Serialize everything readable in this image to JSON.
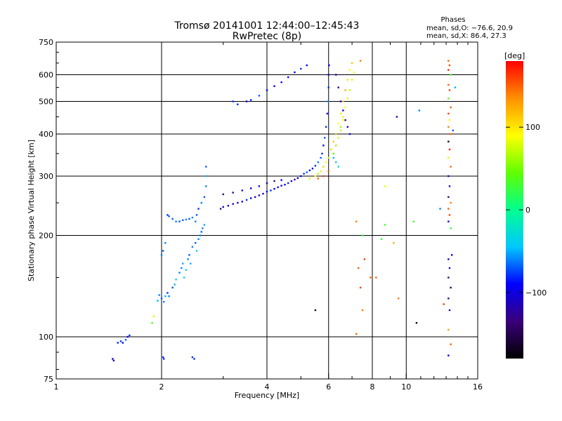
{
  "chart_data": {
    "type": "scatter",
    "title": "Tromsø 20141001 12:44:00–12:45:43",
    "subtitle": "RwPretec (8p)",
    "xlabel": "Frequency [MHz]",
    "ylabel": "Stationary phase Virtual Height [km]",
    "x_scale": "log",
    "y_scale": "log",
    "xlim": [
      1,
      16
    ],
    "ylim": [
      75,
      750
    ],
    "x_ticks": [
      1,
      2,
      4,
      6,
      8,
      10,
      16
    ],
    "x_tick_labels": [
      "1",
      "2",
      "4",
      "6",
      "8",
      "10",
      "16"
    ],
    "y_ticks": [
      75,
      100,
      200,
      300,
      400,
      500,
      600,
      750
    ],
    "y_tick_labels": [
      "75",
      "100",
      "200",
      "300",
      "400",
      "500",
      "600",
      "750"
    ],
    "grid": true,
    "stats": {
      "heading": "Phases",
      "line_o": "mean, sd,O: −76.6, 20.9",
      "line_x": "mean, sd,X:  86.4, 27.3"
    },
    "colorbar": {
      "label": "[deg]",
      "range": [
        -180,
        180
      ],
      "ticks": [
        100,
        0,
        -100
      ],
      "tick_labels": [
        "100",
        "0",
        "−100"
      ],
      "stops": [
        "#000000",
        "#3a007a",
        "#0000ff",
        "#00c8ff",
        "#00ff90",
        "#60ff00",
        "#ffff00",
        "#ff9000",
        "#ff0000"
      ]
    },
    "series": [
      {
        "points": [
          [
            1.45,
            86
          ],
          [
            1.46,
            85
          ],
          [
            1.5,
            96
          ],
          [
            1.53,
            97
          ],
          [
            1.55,
            96
          ],
          [
            1.58,
            98
          ],
          [
            1.6,
            100
          ],
          [
            1.62,
            101
          ],
          [
            1.88,
            110
          ],
          [
            1.9,
            115
          ],
          [
            1.95,
            128
          ],
          [
            1.97,
            133
          ],
          [
            2.0,
            130
          ],
          [
            2.03,
            127
          ],
          [
            2.05,
            132
          ],
          [
            2.08,
            135
          ],
          [
            2.1,
            132
          ],
          [
            2.15,
            140
          ],
          [
            2.18,
            143
          ],
          [
            2.2,
            148
          ],
          [
            2.25,
            155
          ],
          [
            2.28,
            160
          ],
          [
            2.3,
            165
          ],
          [
            2.32,
            150
          ],
          [
            2.35,
            158
          ],
          [
            2.38,
            170
          ],
          [
            2.4,
            175
          ],
          [
            2.42,
            165
          ],
          [
            2.45,
            185
          ],
          [
            2.5,
            190
          ],
          [
            2.52,
            180
          ],
          [
            2.55,
            195
          ],
          [
            2.58,
            200
          ],
          [
            2.6,
            205
          ],
          [
            2.62,
            210
          ],
          [
            2.65,
            215
          ],
          [
            2.5,
            220
          ],
          [
            2.52,
            230
          ],
          [
            2.55,
            240
          ],
          [
            2.6,
            250
          ],
          [
            2.65,
            260
          ],
          [
            2.68,
            280
          ],
          [
            2.7,
            300
          ],
          [
            2.68,
            320
          ],
          [
            2.0,
            175
          ],
          [
            2.02,
            180
          ],
          [
            2.05,
            190
          ],
          [
            2.08,
            230
          ],
          [
            2.1,
            228
          ],
          [
            2.15,
            224
          ],
          [
            2.2,
            220
          ],
          [
            2.25,
            220
          ],
          [
            2.3,
            222
          ],
          [
            2.35,
            223
          ],
          [
            2.4,
            224
          ],
          [
            2.45,
            226
          ],
          [
            2.02,
            87
          ],
          [
            2.03,
            86
          ],
          [
            2.45,
            87
          ],
          [
            2.48,
            86
          ],
          [
            2.95,
            240
          ],
          [
            3.0,
            243
          ],
          [
            3.1,
            245
          ],
          [
            3.2,
            248
          ],
          [
            3.3,
            250
          ],
          [
            3.4,
            252
          ],
          [
            3.5,
            255
          ],
          [
            3.6,
            258
          ],
          [
            3.7,
            260
          ],
          [
            3.8,
            263
          ],
          [
            3.9,
            266
          ],
          [
            4.0,
            270
          ],
          [
            4.1,
            272
          ],
          [
            4.2,
            275
          ],
          [
            4.3,
            278
          ],
          [
            4.4,
            281
          ],
          [
            4.5,
            283
          ],
          [
            4.6,
            286
          ],
          [
            4.7,
            290
          ],
          [
            4.8,
            293
          ],
          [
            4.9,
            296
          ],
          [
            5.0,
            300
          ],
          [
            5.1,
            305
          ],
          [
            5.2,
            308
          ],
          [
            5.3,
            312
          ],
          [
            5.4,
            316
          ],
          [
            5.5,
            322
          ],
          [
            5.6,
            330
          ],
          [
            5.7,
            340
          ],
          [
            5.75,
            350
          ],
          [
            5.8,
            370
          ],
          [
            5.85,
            390
          ],
          [
            5.9,
            420
          ],
          [
            5.95,
            460
          ],
          [
            5.98,
            500
          ],
          [
            6.0,
            550
          ],
          [
            6.0,
            600
          ],
          [
            6.02,
            640
          ],
          [
            3.0,
            265
          ],
          [
            3.2,
            268
          ],
          [
            3.4,
            272
          ],
          [
            3.6,
            276
          ],
          [
            3.8,
            280
          ],
          [
            4.0,
            286
          ],
          [
            4.2,
            290
          ],
          [
            4.4,
            292
          ],
          [
            3.3,
            490
          ],
          [
            3.5,
            500
          ],
          [
            3.6,
            505
          ],
          [
            3.8,
            520
          ],
          [
            4.0,
            540
          ],
          [
            4.2,
            555
          ],
          [
            4.4,
            570
          ],
          [
            4.6,
            590
          ],
          [
            4.8,
            610
          ],
          [
            5.0,
            625
          ],
          [
            5.2,
            640
          ],
          [
            3.2,
            500
          ],
          [
            6.3,
            600
          ],
          [
            6.4,
            550
          ],
          [
            6.5,
            500
          ],
          [
            6.6,
            470
          ],
          [
            6.7,
            440
          ],
          [
            6.8,
            420
          ],
          [
            6.9,
            400
          ],
          [
            6.1,
            360
          ],
          [
            6.2,
            340
          ],
          [
            6.3,
            330
          ],
          [
            6.4,
            320
          ],
          [
            10.9,
            470
          ],
          [
            9.4,
            450
          ],
          [
            5.5,
            120
          ],
          [
            8.7,
            280
          ],
          [
            10.7,
            110
          ],
          [
            9.2,
            190
          ]
        ],
        "phase": [
          -110,
          -110,
          -80,
          -80,
          -90,
          -70,
          -90,
          -80,
          40,
          100,
          -50,
          -60,
          -70,
          -60,
          -50,
          -80,
          -60,
          -70,
          -50,
          -40,
          -60,
          -60,
          -50,
          -30,
          -40,
          -60,
          -70,
          -50,
          -60,
          -70,
          -40,
          -60,
          -60,
          -70,
          -60,
          -50,
          -60,
          -70,
          -80,
          -60,
          -70,
          -60,
          -50,
          -70,
          -60,
          -70,
          -60,
          -80,
          -70,
          -70,
          -60,
          -70,
          -70,
          -60,
          -70,
          -60,
          -80,
          -80,
          -80,
          -80,
          -120,
          -110,
          -100,
          -100,
          -110,
          -90,
          -80,
          -100,
          -120,
          -110,
          -100,
          -90,
          -80,
          -90,
          -100,
          -110,
          -90,
          -80,
          -110,
          -120,
          -100,
          -90,
          -80,
          -70,
          -90,
          -100,
          -80,
          -60,
          -70,
          -80,
          -90,
          -70,
          -80,
          -90,
          -60,
          -80,
          -100,
          -90,
          -130,
          -120,
          -110,
          -100,
          -100,
          -110,
          -120,
          -100,
          -80,
          -90,
          -80,
          -70,
          -90,
          -100,
          -110,
          -100,
          -90,
          -80,
          -90,
          -80,
          -120,
          -130,
          -110,
          -100,
          -140,
          -120,
          -110,
          -60,
          -50,
          -40,
          -30,
          -60,
          -110,
          -170,
          80,
          -170,
          120
        ]
      },
      {
        "points": [
          [
            5.3,
            295
          ],
          [
            5.5,
            300
          ],
          [
            5.6,
            305
          ],
          [
            5.7,
            310
          ],
          [
            5.8,
            320
          ],
          [
            5.9,
            330
          ],
          [
            6.0,
            340
          ],
          [
            6.1,
            360
          ],
          [
            6.2,
            380
          ],
          [
            6.3,
            400
          ],
          [
            6.4,
            430
          ],
          [
            6.5,
            460
          ],
          [
            6.6,
            500
          ],
          [
            6.7,
            540
          ],
          [
            6.8,
            580
          ],
          [
            6.9,
            620
          ],
          [
            7.0,
            650
          ],
          [
            6.5,
            420
          ],
          [
            6.6,
            450
          ],
          [
            6.7,
            480
          ],
          [
            6.8,
            510
          ],
          [
            6.9,
            540
          ],
          [
            7.0,
            580
          ],
          [
            7.1,
            610
          ],
          [
            6.2,
            350
          ],
          [
            6.3,
            370
          ],
          [
            6.4,
            390
          ],
          [
            6.5,
            410
          ],
          [
            6.6,
            440
          ],
          [
            6.0,
            310
          ],
          [
            5.8,
            300
          ],
          [
            5.6,
            295
          ],
          [
            7.4,
            660
          ],
          [
            7.2,
            220
          ],
          [
            7.3,
            160
          ],
          [
            7.4,
            140
          ],
          [
            7.5,
            120
          ],
          [
            7.2,
            102
          ],
          [
            7.5,
            200
          ],
          [
            8.2,
            150
          ],
          [
            8.7,
            215
          ],
          [
            8.5,
            195
          ],
          [
            9.5,
            130
          ],
          [
            10.5,
            220
          ],
          [
            7.9,
            150
          ],
          [
            7.6,
            170
          ],
          [
            13.2,
            660
          ],
          [
            13.3,
            640
          ],
          [
            13.2,
            620
          ],
          [
            13.4,
            600
          ],
          [
            13.2,
            560
          ],
          [
            13.3,
            540
          ],
          [
            13.2,
            510
          ],
          [
            13.4,
            480
          ],
          [
            13.2,
            460
          ],
          [
            13.3,
            440
          ],
          [
            13.2,
            420
          ],
          [
            13.4,
            400
          ],
          [
            13.2,
            380
          ],
          [
            13.3,
            360
          ],
          [
            13.2,
            340
          ],
          [
            13.4,
            320
          ],
          [
            13.2,
            300
          ],
          [
            13.3,
            280
          ],
          [
            13.2,
            260
          ],
          [
            13.4,
            250
          ],
          [
            13.2,
            240
          ],
          [
            13.3,
            230
          ],
          [
            13.2,
            220
          ],
          [
            13.4,
            210
          ],
          [
            13.2,
            170
          ],
          [
            13.3,
            160
          ],
          [
            13.2,
            150
          ],
          [
            13.4,
            140
          ],
          [
            13.2,
            130
          ],
          [
            13.3,
            120
          ],
          [
            13.2,
            105
          ],
          [
            13.4,
            95
          ],
          [
            13.2,
            88
          ],
          [
            12.8,
            125
          ],
          [
            12.5,
            240
          ],
          [
            13.8,
            550
          ],
          [
            13.6,
            410
          ],
          [
            13.5,
            175
          ]
        ],
        "phase": [
          80,
          90,
          70,
          100,
          110,
          90,
          80,
          100,
          110,
          120,
          90,
          100,
          110,
          120,
          100,
          90,
          110,
          60,
          80,
          90,
          100,
          70,
          80,
          90,
          40,
          60,
          80,
          70,
          90,
          150,
          160,
          150,
          140,
          140,
          150,
          160,
          140,
          150,
          20,
          150,
          30,
          20,
          140,
          30,
          150,
          160,
          150,
          160,
          170,
          30,
          150,
          160,
          40,
          150,
          160,
          90,
          140,
          150,
          -160,
          170,
          100,
          150,
          -110,
          -120,
          -130,
          140,
          150,
          160,
          -100,
          20,
          -100,
          -120,
          -130,
          -150,
          -120,
          -110,
          130,
          150,
          -90,
          160,
          -60,
          -50,
          -70,
          -90
        ]
      }
    ]
  }
}
